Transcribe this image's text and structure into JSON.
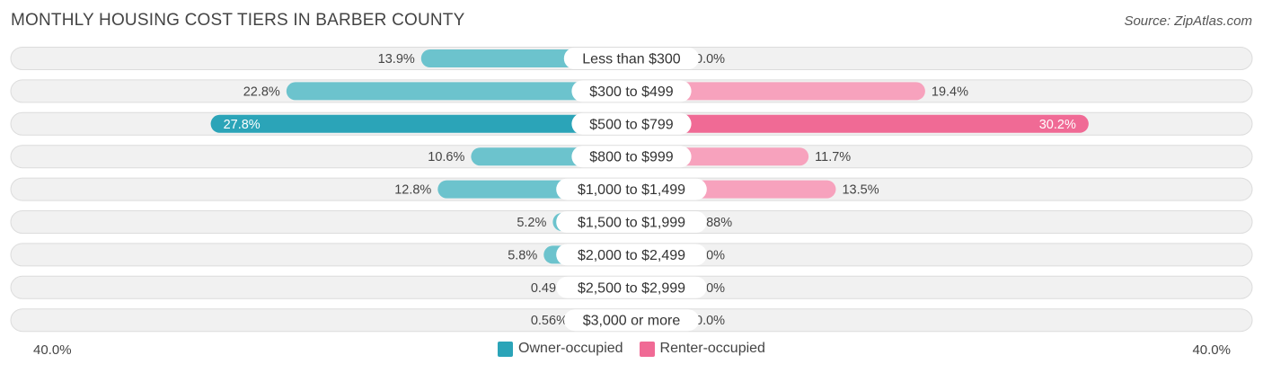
{
  "title": "MONTHLY HOUSING COST TIERS IN BARBER COUNTY",
  "source": "Source: ZipAtlas.com",
  "chart_data": {
    "type": "bar",
    "orientation": "horizontal-diverging",
    "title": "MONTHLY HOUSING COST TIERS IN BARBER COUNTY",
    "categories": [
      "Less than $300",
      "$300 to $499",
      "$500 to $799",
      "$800 to $999",
      "$1,000 to $1,499",
      "$1,500 to $1,999",
      "$2,000 to $2,499",
      "$2,500 to $2,999",
      "$3,000 or more"
    ],
    "series": [
      {
        "name": "Owner-occupied",
        "values": [
          13.9,
          22.8,
          27.8,
          10.6,
          12.8,
          5.2,
          5.8,
          0.49,
          0.56
        ],
        "labels": [
          "13.9%",
          "22.8%",
          "27.8%",
          "10.6%",
          "12.8%",
          "5.2%",
          "5.8%",
          "0.49%",
          "0.56%"
        ]
      },
      {
        "name": "Renter-occupied",
        "values": [
          0.0,
          19.4,
          30.2,
          11.7,
          13.5,
          0.88,
          0.0,
          0.0,
          0.0
        ],
        "labels": [
          "0.0%",
          "19.4%",
          "30.2%",
          "11.7%",
          "13.5%",
          "0.88%",
          "0.0%",
          "0.0%",
          "0.0%"
        ]
      }
    ],
    "xlim": [
      -40,
      40
    ],
    "axis_min_label": "40.0%",
    "axis_max_label": "40.0%",
    "legend_position": "bottom-center",
    "colors": {
      "owner": "#6cc3cd",
      "owner_strong": "#2ba4b8",
      "renter": "#f7a2bd",
      "renter_strong": "#f06a95",
      "row_bg": "#f1f1f1",
      "row_border": "#dcdcdc"
    }
  }
}
